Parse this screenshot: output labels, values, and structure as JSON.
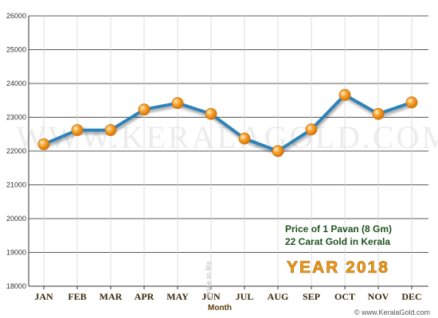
{
  "chart_data": {
    "type": "line",
    "xlabel": "Month",
    "ylabel": "Price in Rs",
    "categories": [
      "JAN",
      "FEB",
      "MAR",
      "APR",
      "MAY",
      "JUN",
      "JUL",
      "AUG",
      "SEP",
      "OCT",
      "NOV",
      "DEC"
    ],
    "values": [
      22200,
      22620,
      22620,
      23230,
      23420,
      23100,
      22370,
      22000,
      22640,
      23660,
      23100,
      23440
    ],
    "ylim": [
      18000,
      26000
    ],
    "yticks": [
      18000,
      19000,
      20000,
      21000,
      22000,
      23000,
      24000,
      25000,
      26000
    ],
    "grid": true,
    "line_color": "#2f82b8",
    "marker_color": "#f39a1d"
  },
  "annotations": {
    "line1": "Price of 1 Pavan (8 Gm)",
    "line2": "22 Carat Gold in Kerala",
    "year": "YEAR 2018"
  },
  "watermark": "WWW.KERALAGOLD.COM",
  "credit": "© www.KeralaGold.com"
}
